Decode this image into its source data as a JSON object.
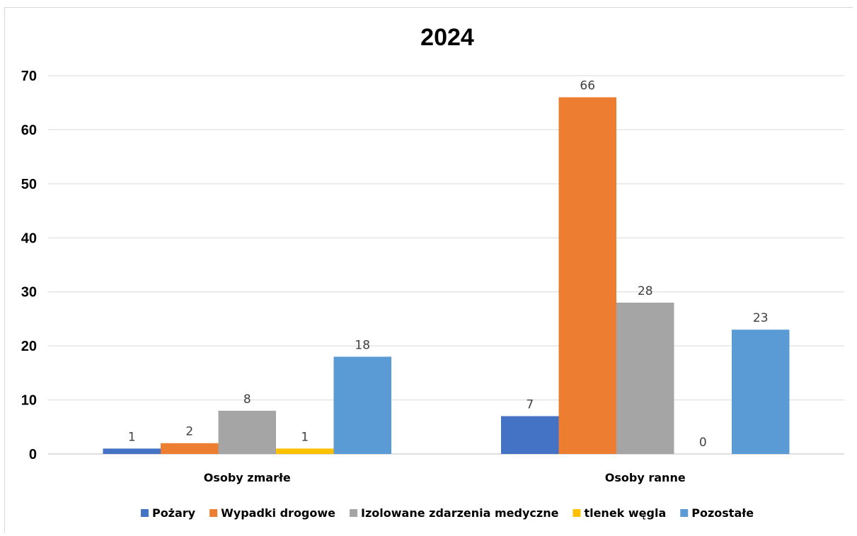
{
  "chart_data": {
    "type": "bar",
    "title": "2024",
    "categories": [
      "Osoby zmarłe",
      "Osoby ranne"
    ],
    "series": [
      {
        "name": "Pożary",
        "values": [
          1,
          7
        ],
        "color": "#4472c4"
      },
      {
        "name": "Wypadki drogowe",
        "values": [
          2,
          66
        ],
        "color": "#ed7d31"
      },
      {
        "name": "Izolowane zdarzenia medyczne",
        "values": [
          8,
          28
        ],
        "color": "#a5a5a5"
      },
      {
        "name": "tlenek węgla",
        "values": [
          1,
          0
        ],
        "color": "#ffc000"
      },
      {
        "name": "Pozostałe",
        "values": [
          18,
          23
        ],
        "color": "#5b9bd5"
      }
    ],
    "ylim": [
      0,
      70
    ],
    "yticks": [
      0,
      10,
      20,
      30,
      40,
      50,
      60,
      70
    ],
    "xlabel": "",
    "ylabel": "",
    "grid": true,
    "legend": "bottom",
    "data_labels": true
  }
}
